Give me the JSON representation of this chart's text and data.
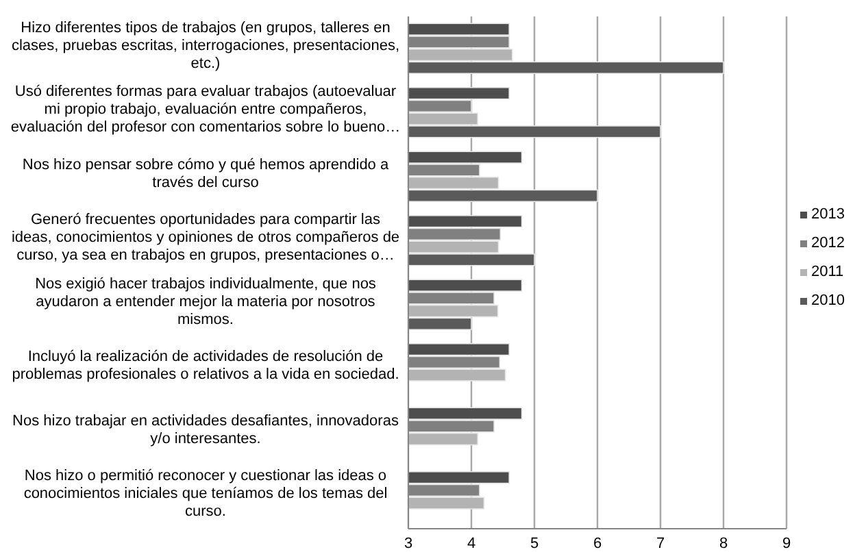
{
  "chart_data": {
    "type": "bar",
    "orientation": "horizontal",
    "categories": [
      "Hizo diferentes tipos de trabajos (en grupos, talleres en clases, pruebas escritas, interrogaciones, presentaciones, etc.)",
      "Usó diferentes formas para evaluar trabajos (autoevaluar mi propio trabajo, evaluación entre compañeros, evaluación del profesor con comentarios sobre lo bueno…",
      "Nos hizo pensar sobre cómo y qué hemos aprendido a través del curso",
      "Generó frecuentes oportunidades para compartir las ideas, conocimientos y opiniones de otros compañeros de curso, ya sea en trabajos en grupos, presentaciones  o…",
      "Nos exigió hacer trabajos individualmente, que nos ayudaron a entender mejor la materia por nosotros mismos.",
      "Incluyó la realización de actividades de resolución de problemas profesionales o relativos a la vida en sociedad.",
      "Nos hizo trabajar en actividades desafiantes, innovadoras y/o interesantes.",
      "Nos hizo o permitió reconocer y cuestionar las  ideas o conocimientos iniciales que teníamos de los temas del curso."
    ],
    "series": [
      {
        "name": "2013",
        "color": "#4d4d4d",
        "values": [
          4.6,
          4.6,
          4.8,
          4.8,
          4.8,
          4.6,
          4.8,
          4.6
        ]
      },
      {
        "name": "2012",
        "color": "#808080",
        "values": [
          4.6,
          4.0,
          4.13,
          4.46,
          4.36,
          4.45,
          4.36,
          4.13
        ]
      },
      {
        "name": "2011",
        "color": "#b3b3b3",
        "values": [
          4.65,
          4.1,
          4.43,
          4.43,
          4.42,
          4.54,
          4.1,
          4.2
        ]
      },
      {
        "name": "2010",
        "color": "#5a5a5a",
        "values": [
          8,
          7,
          6,
          5,
          4,
          null,
          null,
          null
        ]
      }
    ],
    "xlim": [
      3,
      9
    ],
    "xticks": [
      3,
      4,
      5,
      6,
      7,
      8,
      9
    ],
    "grid": "x",
    "legend": "right"
  }
}
